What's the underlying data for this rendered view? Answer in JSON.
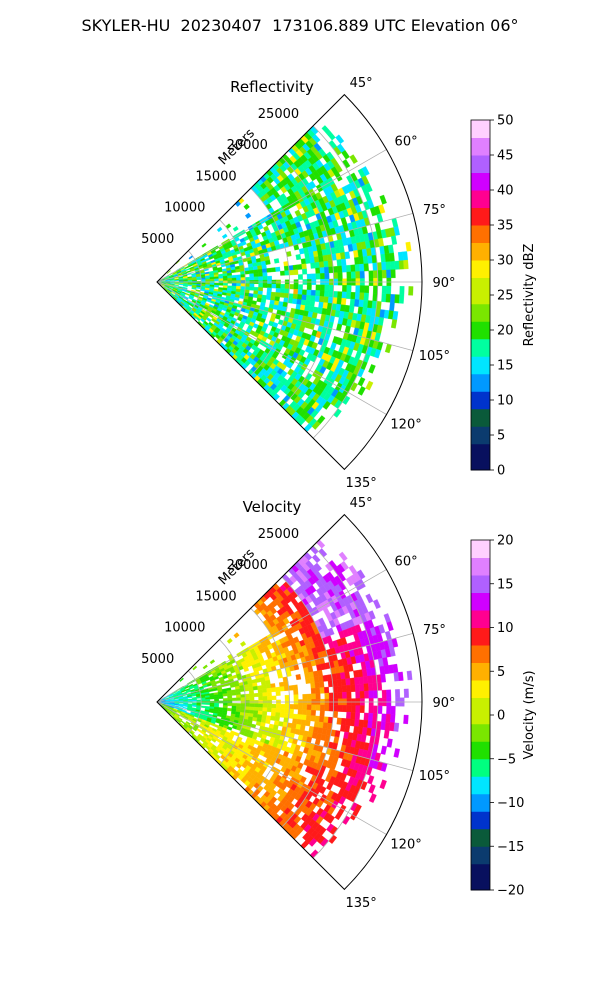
{
  "page": {
    "title": "SKYLER-HU  20230407  173106.889 UTC Elevation 06°"
  },
  "chart_data": [
    {
      "type": "heatmap",
      "title": "Reflectivity",
      "projection": "polar-sector",
      "radial_label": "Meters",
      "radial_ticks": [
        "5000",
        "10000",
        "15000",
        "20000",
        "25000"
      ],
      "radial_tick_values": [
        5000,
        10000,
        15000,
        20000,
        25000
      ],
      "radial_max": 30000,
      "angle_ticks": [
        "45°",
        "60°",
        "75°",
        "90°",
        "105°",
        "120°",
        "135°"
      ],
      "angle_tick_values": [
        45,
        60,
        75,
        90,
        105,
        120,
        135
      ],
      "angle_range": [
        45,
        135
      ],
      "grid": true,
      "colorbar": {
        "label": "Reflectivity dBZ",
        "ticks": [
          "0",
          "5",
          "10",
          "15",
          "20",
          "25",
          "30",
          "35",
          "40",
          "45",
          "50"
        ],
        "range": [
          0,
          50
        ],
        "colors": [
          "#08105e",
          "#0b3b6e",
          "#0a5a3a",
          "#0033cc",
          "#0099ff",
          "#00e5ff",
          "#00ffa0",
          "#20e000",
          "#7ae600",
          "#c8f000",
          "#fff000",
          "#ffb000",
          "#ff7000",
          "#ff1a1a",
          "#ff0090",
          "#d000ff",
          "#b060ff",
          "#e080ff",
          "#ffd0ff"
        ]
      },
      "field_description": "mostly 15-25 dBZ (green) echoes with scattered 10-15 dBZ (cyan) patches and a few yellow 25-30 dBZ spots"
    },
    {
      "type": "heatmap",
      "title": "Velocity",
      "projection": "polar-sector",
      "radial_label": "Meters",
      "radial_ticks": [
        "5000",
        "10000",
        "15000",
        "20000",
        "25000"
      ],
      "radial_tick_values": [
        5000,
        10000,
        15000,
        20000,
        25000
      ],
      "radial_max": 30000,
      "angle_ticks": [
        "45°",
        "60°",
        "75°",
        "90°",
        "105°",
        "120°",
        "135°"
      ],
      "angle_tick_values": [
        45,
        60,
        75,
        90,
        105,
        120,
        135
      ],
      "angle_range": [
        45,
        135
      ],
      "grid": true,
      "colorbar": {
        "label": "Velocity (m/s)",
        "ticks": [
          "−20",
          "−15",
          "−10",
          "−5",
          "0",
          "5",
          "10",
          "15",
          "20"
        ],
        "range": [
          -20,
          20
        ],
        "colors": [
          "#08105e",
          "#0b3b6e",
          "#0a5a3a",
          "#0033cc",
          "#0099ff",
          "#00e5ff",
          "#00ff80",
          "#20e000",
          "#7ae600",
          "#c8f000",
          "#fff000",
          "#ffb000",
          "#ff7000",
          "#ff1a1a",
          "#ff0090",
          "#d000ff",
          "#b060ff",
          "#e080ff",
          "#ffd0ff"
        ]
      },
      "field_description": "cyan/green inbound velocities near the radar transitioning through yellow/orange to red and magenta outbound velocities at long range"
    }
  ]
}
